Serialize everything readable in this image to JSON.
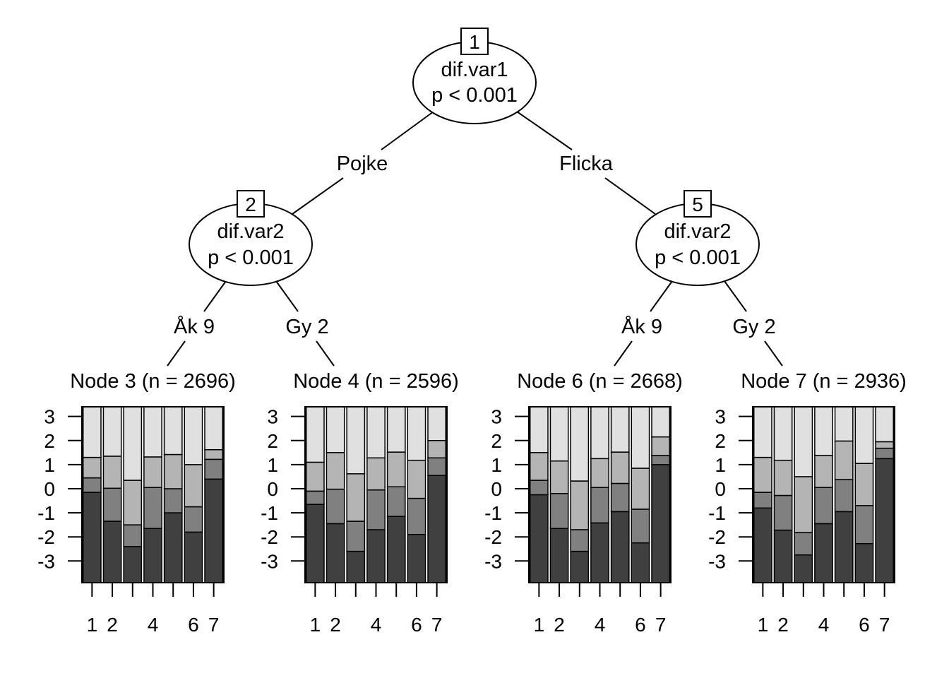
{
  "inner_nodes": [
    {
      "id": "1",
      "variable": "dif.var1",
      "pvalue": "p < 0.001"
    },
    {
      "id": "2",
      "variable": "dif.var2",
      "pvalue": "p < 0.001"
    },
    {
      "id": "5",
      "variable": "dif.var2",
      "pvalue": "p < 0.001"
    }
  ],
  "edges": [
    {
      "label": "Pojke"
    },
    {
      "label": "Flicka"
    },
    {
      "label": "Åk 9"
    },
    {
      "label": "Gy 2"
    },
    {
      "label": "Åk 9"
    },
    {
      "label": "Gy 2"
    }
  ],
  "chart_data": {
    "type": "stacked-bar",
    "y_ticks": [
      "3",
      "2",
      "1",
      "0",
      "-1",
      "-2",
      "-3"
    ],
    "x_ticks": [
      "1",
      "2",
      "4",
      "6",
      "7"
    ],
    "ylim": [
      -3.9,
      3.4
    ],
    "segment_colors": [
      "#404040",
      "#808080",
      "#b4b4b4",
      "#e0e0e0"
    ],
    "terminal_nodes": [
      {
        "title": "Node 3 (n = 2696)",
        "bars": [
          [
            -0.15,
            0.45,
            1.3
          ],
          [
            -1.35,
            0.02,
            1.35
          ],
          [
            -2.4,
            -1.5,
            0.35
          ],
          [
            -1.65,
            0.05,
            1.32
          ],
          [
            -1.0,
            0.0,
            1.42
          ],
          [
            -1.8,
            -0.75,
            1.0
          ],
          [
            0.4,
            1.22,
            1.62
          ]
        ]
      },
      {
        "title": "Node 4 (n = 2596)",
        "bars": [
          [
            -0.65,
            -0.1,
            1.1
          ],
          [
            -1.45,
            -0.02,
            1.5
          ],
          [
            -2.6,
            -1.35,
            0.62
          ],
          [
            -1.7,
            -0.05,
            1.28
          ],
          [
            -1.15,
            0.08,
            1.52
          ],
          [
            -1.9,
            -0.4,
            1.18
          ],
          [
            0.55,
            1.28,
            2.0
          ]
        ]
      },
      {
        "title": "Node 6 (n = 2668)",
        "bars": [
          [
            -0.25,
            0.35,
            1.5
          ],
          [
            -1.65,
            -0.2,
            1.15
          ],
          [
            -2.6,
            -1.7,
            0.32
          ],
          [
            -1.42,
            0.05,
            1.25
          ],
          [
            -0.95,
            0.22,
            1.52
          ],
          [
            -2.25,
            -0.85,
            0.85
          ],
          [
            1.0,
            1.38,
            2.15
          ]
        ]
      },
      {
        "title": "Node 7 (n = 2936)",
        "bars": [
          [
            -0.8,
            -0.15,
            1.3
          ],
          [
            -1.72,
            -0.28,
            1.18
          ],
          [
            -2.75,
            -1.82,
            0.5
          ],
          [
            -1.45,
            0.05,
            1.38
          ],
          [
            -0.95,
            0.38,
            1.98
          ],
          [
            -2.28,
            -0.7,
            1.05
          ],
          [
            1.25,
            1.68,
            1.95
          ]
        ]
      }
    ]
  }
}
